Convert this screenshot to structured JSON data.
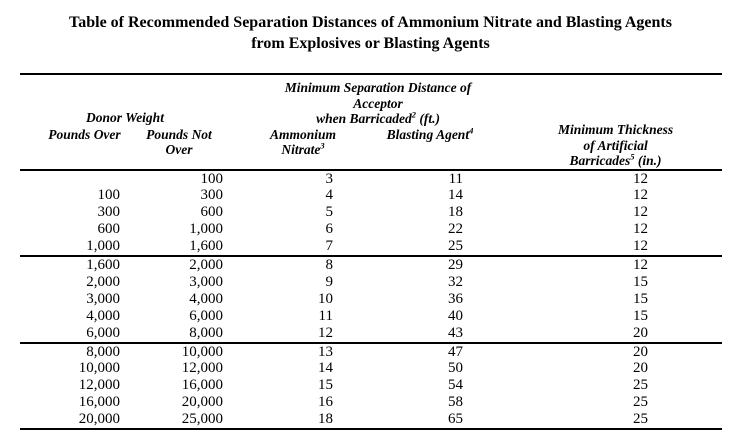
{
  "colors": {
    "text": "#000000",
    "background": "#ffffff"
  },
  "title": {
    "line1": "Table of Recommended Separation Distances of Ammonium Nitrate and Blasting Agents",
    "line2": "from Explosives or Blasting Agents"
  },
  "table": {
    "header": {
      "donor_weight": "Donor Weight",
      "separation": {
        "line1": "Minimum Separation Distance of Acceptor",
        "line2_text": "when Barricaded",
        "line2_sup": "2",
        "line2_unit": " (ft.)"
      },
      "thickness": {
        "line1": "Minimum Thickness",
        "line2": "of Artificial",
        "line3_text": "Barricades",
        "line3_sup": "5",
        "line3_unit": " (in.)"
      },
      "subcolumns": {
        "pounds_over": "Pounds Over",
        "pounds_not_over_line1": "Pounds Not",
        "pounds_not_over_line2": "Over",
        "ammonium_line1": "Ammonium",
        "ammonium_line2_text": "Nitrate",
        "ammonium_line2_sup": "3",
        "blasting_text": "Blasting Agent",
        "blasting_sup": "4"
      }
    },
    "sections": [
      {
        "rows": [
          [
            "",
            "100",
            "3",
            "11",
            "12"
          ],
          [
            "100",
            "300",
            "4",
            "14",
            "12"
          ],
          [
            "300",
            "600",
            "5",
            "18",
            "12"
          ],
          [
            "600",
            "1,000",
            "6",
            "22",
            "12"
          ],
          [
            "1,000",
            "1,600",
            "7",
            "25",
            "12"
          ]
        ]
      },
      {
        "rows": [
          [
            "1,600",
            "2,000",
            "8",
            "29",
            "12"
          ],
          [
            "2,000",
            "3,000",
            "9",
            "32",
            "15"
          ],
          [
            "3,000",
            "4,000",
            "10",
            "36",
            "15"
          ],
          [
            "4,000",
            "6,000",
            "11",
            "40",
            "15"
          ],
          [
            "6,000",
            "8,000",
            "12",
            "43",
            "20"
          ]
        ]
      },
      {
        "rows": [
          [
            "8,000",
            "10,000",
            "13",
            "47",
            "20"
          ],
          [
            "10,000",
            "12,000",
            "14",
            "50",
            "20"
          ],
          [
            "12,000",
            "16,000",
            "15",
            "54",
            "25"
          ],
          [
            "16,000",
            "20,000",
            "16",
            "58",
            "25"
          ],
          [
            "20,000",
            "25,000",
            "18",
            "65",
            "25"
          ]
        ]
      }
    ]
  }
}
